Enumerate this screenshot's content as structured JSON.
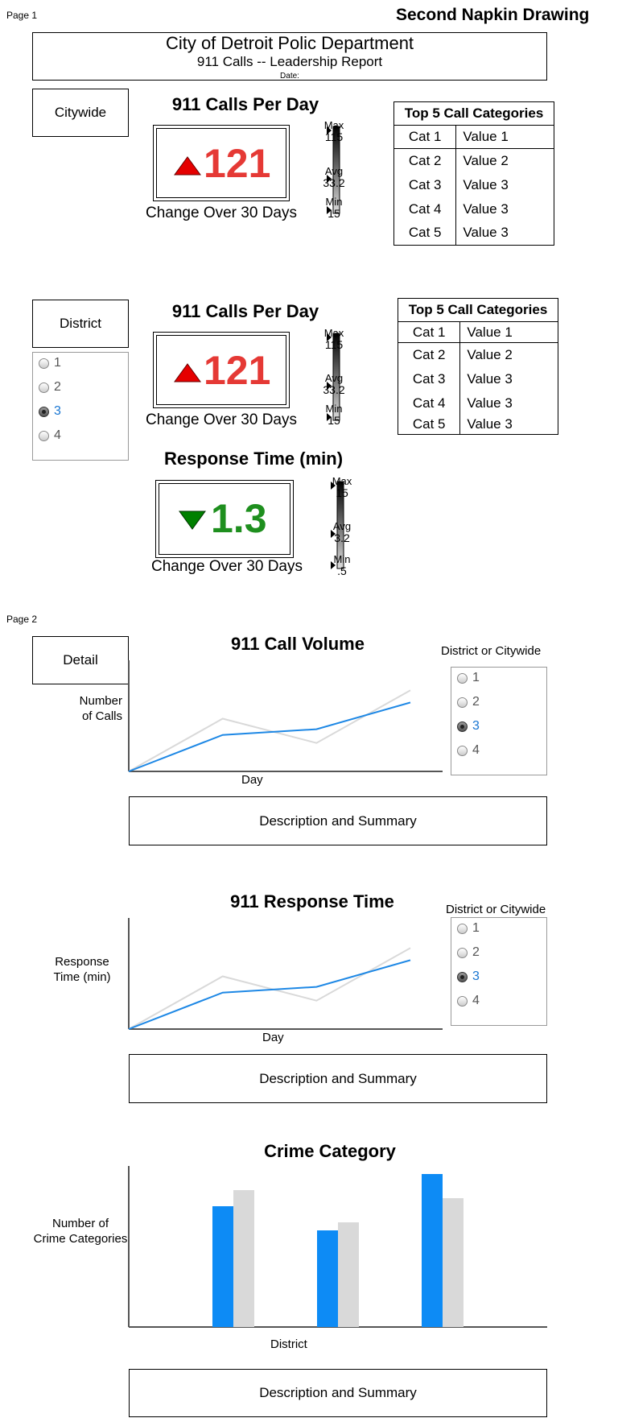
{
  "page1_label": "Page 1",
  "page2_label": "Page 2",
  "drawing_title": "Second Napkin Drawing",
  "header": {
    "title": "City of Detroit Polic Department",
    "subtitle": "911 Calls -- Leadership Report",
    "date_label": "Date:"
  },
  "citywide": {
    "button": "Citywide",
    "kpi_title": "911 Calls Per Day",
    "kpi_value": "121",
    "kpi_direction": "up",
    "kpi_caption": "Change Over 30 Days",
    "scale": {
      "max_label": "Max",
      "max": "115",
      "avg_label": "Avg",
      "avg": "33.2",
      "min_label": "Min",
      "min": "15"
    },
    "top5": {
      "title": "Top 5 Call Categories",
      "rows": [
        [
          "Cat 1",
          "Value 1"
        ],
        [
          "Cat 2",
          "Value 2"
        ],
        [
          "Cat 3",
          "Value 3"
        ],
        [
          "Cat 4",
          "Value 3"
        ],
        [
          "Cat 5",
          "Value 3"
        ]
      ]
    }
  },
  "district": {
    "button": "District",
    "radios": [
      "1",
      "2",
      "3",
      "4"
    ],
    "selected": "3",
    "kpi_title": "911 Calls Per Day",
    "kpi_value": "121",
    "kpi_direction": "up",
    "kpi_caption": "Change Over 30 Days",
    "scale": {
      "max_label": "Max",
      "max": "115",
      "avg_label": "Avg",
      "avg": "33.2",
      "min_label": "Min",
      "min": "15"
    },
    "top5": {
      "title": "Top 5 Call Categories",
      "rows": [
        [
          "Cat 1",
          "Value 1"
        ],
        [
          "Cat 2",
          "Value 2"
        ],
        [
          "Cat 3",
          "Value 3"
        ],
        [
          "Cat 4",
          "Value 3"
        ],
        [
          "Cat 5",
          "Value 3"
        ]
      ]
    },
    "response": {
      "title": "Response Time (min)",
      "value": "1.3",
      "direction": "down",
      "caption": "Change Over 30 Days",
      "scale": {
        "max_label": "Max",
        "max": "15",
        "avg_label": "Avg",
        "avg": "3.2",
        "min_label": "Min",
        "min": ".5"
      }
    }
  },
  "colors": {
    "up": "#e53935",
    "up_triangle": "#e50000",
    "down": "#1e8f1e",
    "down_triangle": "#008000",
    "blue": "#1e88e5",
    "bar_blue": "#0d8bf5",
    "grey": "#d9d9d9",
    "selected_radio": "#1976d2"
  },
  "detail": {
    "button": "Detail",
    "selector_label": "District or Citywide",
    "radios": [
      "1",
      "2",
      "3",
      "4"
    ],
    "selected": "3",
    "summary": "Description and Summary"
  },
  "chart_data": [
    {
      "type": "line",
      "title": "911 Call Volume",
      "xlabel": "Day",
      "ylabel": "Number\nof Calls",
      "ylabel_lines": [
        "Number",
        "of Calls"
      ],
      "series": [
        {
          "color": "#1e88e5",
          "values": [
            0,
            45,
            52,
            85
          ]
        },
        {
          "color": "#d9d9d9",
          "values": [
            0,
            65,
            35,
            100
          ]
        }
      ],
      "x": [
        0,
        1,
        2,
        3
      ]
    },
    {
      "type": "line",
      "title": "911 Response Time",
      "xlabel": "Day",
      "ylabel_lines": [
        "Response",
        "Time (min)"
      ],
      "series": [
        {
          "color": "#1e88e5",
          "values": [
            0,
            45,
            52,
            85
          ]
        },
        {
          "color": "#d9d9d9",
          "values": [
            0,
            65,
            35,
            100
          ]
        }
      ],
      "x": [
        0,
        1,
        2,
        3
      ]
    },
    {
      "type": "bar",
      "title": "Crime Category",
      "xlabel": "District",
      "ylabel_lines": [
        "Number of",
        "Crime Categories"
      ],
      "categories": [
        "",
        "",
        ""
      ],
      "series": [
        {
          "color": "#0d8bf5",
          "values": [
            75,
            60,
            95
          ]
        },
        {
          "color": "#d9d9d9",
          "values": [
            85,
            65,
            80
          ]
        }
      ],
      "ylim": [
        0,
        100
      ]
    }
  ]
}
